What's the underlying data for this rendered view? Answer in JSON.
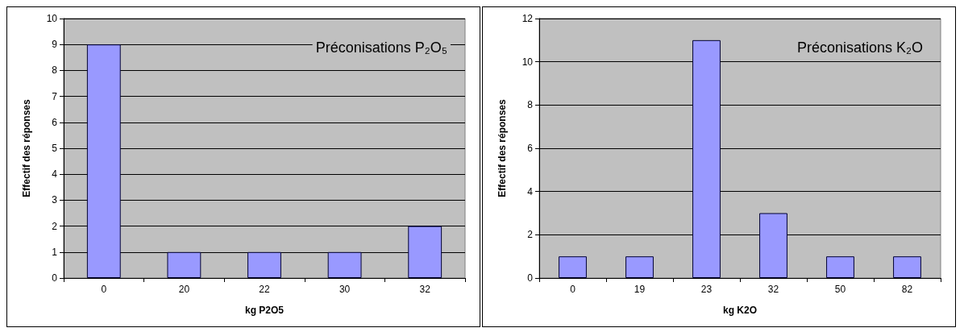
{
  "chart_data": [
    {
      "type": "bar",
      "title": "Préconisations P₂O₅",
      "xlabel": "kg P2O5",
      "ylabel": "Effectif des réponses",
      "categories": [
        "0",
        "20",
        "22",
        "30",
        "32"
      ],
      "values": [
        9,
        1,
        1,
        1,
        2
      ],
      "color": "#9999ff",
      "ylim": [
        0,
        10
      ],
      "yticks": [
        0,
        1,
        2,
        3,
        4,
        5,
        6,
        7,
        8,
        9,
        10
      ],
      "grid": "y"
    },
    {
      "type": "bar",
      "title": "Préconisations K₂O",
      "xlabel": "kg K2O",
      "ylabel": "Effectif des réponses",
      "categories": [
        "0",
        "19",
        "23",
        "32",
        "50",
        "82"
      ],
      "values": [
        1,
        1,
        11,
        3,
        1,
        1
      ],
      "color": "#9999ff",
      "ylim": [
        0,
        12
      ],
      "yticks": [
        0,
        2,
        4,
        6,
        8,
        10,
        12
      ],
      "grid": "y"
    }
  ]
}
